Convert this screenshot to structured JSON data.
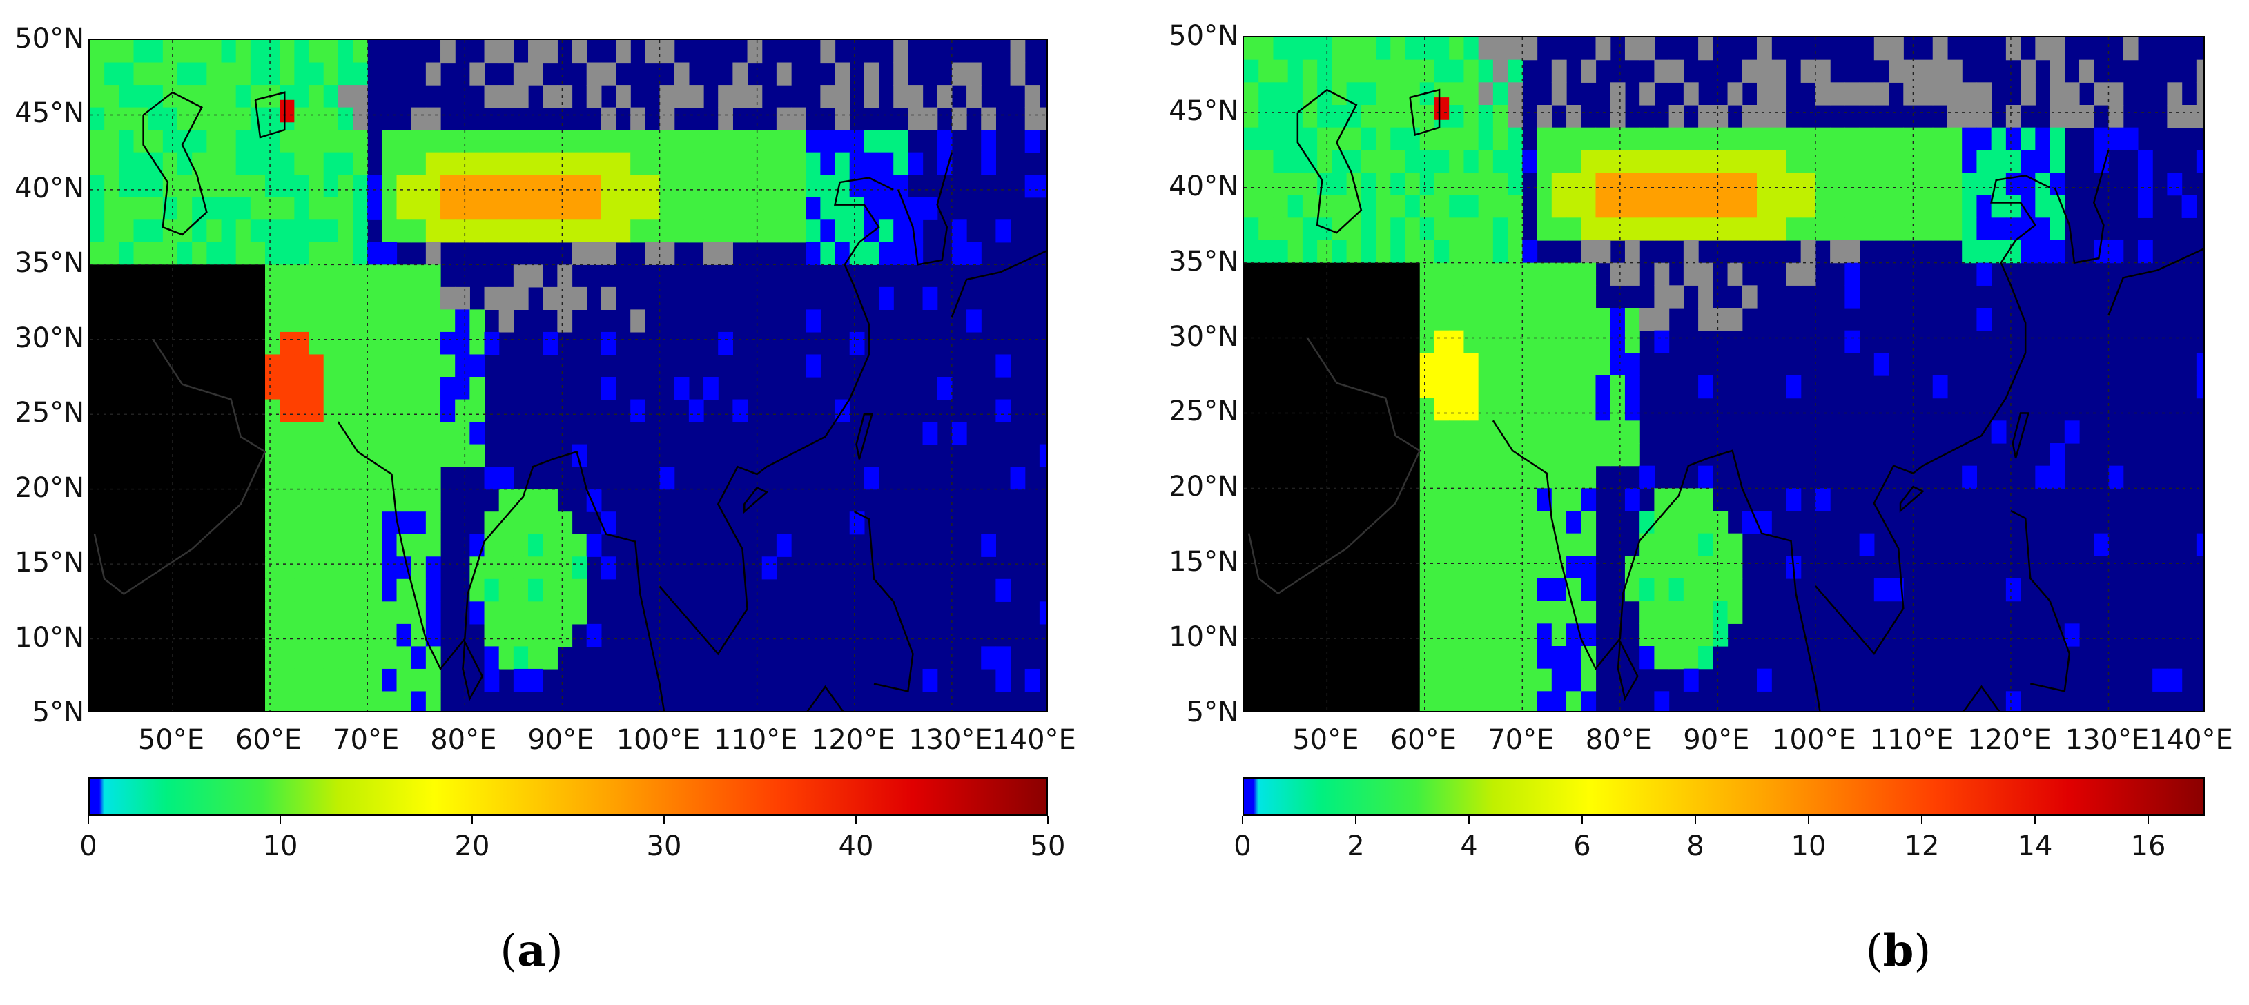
{
  "panels": [
    {
      "id": "a",
      "caption_open": "(",
      "caption_letter": "a",
      "caption_close": ")",
      "lat_labels": [
        "50°N",
        "45°N",
        "40°N",
        "35°N",
        "30°N",
        "25°N",
        "20°N",
        "15°N",
        "10°N",
        "5°N"
      ],
      "lon_labels": [
        "50°E",
        "60°E",
        "70°E",
        "80°E",
        "90°E",
        "100°E",
        "110°E",
        "120°E",
        "130°E",
        "140°E"
      ],
      "colorbar_ticks": [
        "0",
        "10",
        "20",
        "30",
        "40",
        "50"
      ],
      "colorbar_range": [
        0,
        50
      ]
    },
    {
      "id": "b",
      "caption_open": "(",
      "caption_letter": "b",
      "caption_close": ")",
      "lat_labels": [
        "50°N",
        "45°N",
        "40°N",
        "35°N",
        "30°N",
        "25°N",
        "20°N",
        "15°N",
        "10°N",
        "5°N"
      ],
      "lon_labels": [
        "50°E",
        "60°E",
        "70°E",
        "80°E",
        "90°E",
        "100°E",
        "110°E",
        "120°E",
        "130°E",
        "140°E"
      ],
      "colorbar_ticks": [
        "0",
        "2",
        "4",
        "6",
        "8",
        "10",
        "12",
        "14",
        "16"
      ],
      "colorbar_range": [
        0,
        17
      ]
    }
  ],
  "colors": {
    "ocean_no_data": "#00008b",
    "missing": "#8c8c8c",
    "masked": "#000000",
    "scale": [
      "#0000ff",
      "#00e5e5",
      "#00f080",
      "#40f040",
      "#c0f000",
      "#ffff00",
      "#ffa000",
      "#ff4000",
      "#e00000",
      "#8b0000"
    ]
  }
}
